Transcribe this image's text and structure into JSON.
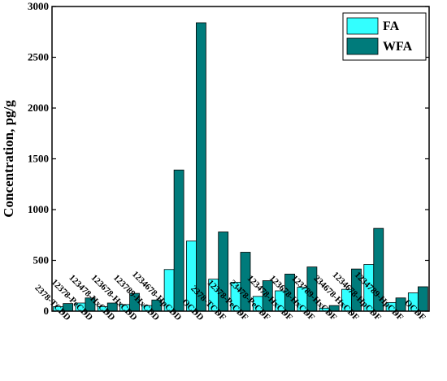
{
  "chart_data": {
    "type": "bar",
    "ylabel": "Concentration, pg/g",
    "xlabel": "",
    "ylim": [
      0,
      3000
    ],
    "yticks": [
      0,
      500,
      1000,
      1500,
      2000,
      2500,
      3000
    ],
    "legend_position": "top-right",
    "grid": false,
    "categories": [
      "2378-TCDD",
      "12378-PeCDD",
      "123478-HxCDD",
      "123678-HxCDD",
      "123789-HxCDD",
      "1234678-HpCDD",
      "OCDD",
      "2378-TCDF",
      "12378-PeCDF",
      "23478-PeCDF",
      "123478-HxCDF",
      "123678-HxCDF",
      "123789-HxCDF",
      "234678-HxCDF",
      "1234678-HpCDF",
      "1234789-HpCDF",
      "OCDF"
    ],
    "series": [
      {
        "name": "FA",
        "color": "#33ffff",
        "values": [
          45,
          80,
          45,
          65,
          55,
          410,
          690,
          315,
          285,
          145,
          200,
          235,
          30,
          215,
          460,
          85,
          180
        ]
      },
      {
        "name": "WFA",
        "color": "#007b7b",
        "values": [
          75,
          130,
          80,
          175,
          110,
          1390,
          2840,
          780,
          580,
          300,
          365,
          435,
          55,
          415,
          815,
          130,
          240
        ]
      }
    ]
  }
}
